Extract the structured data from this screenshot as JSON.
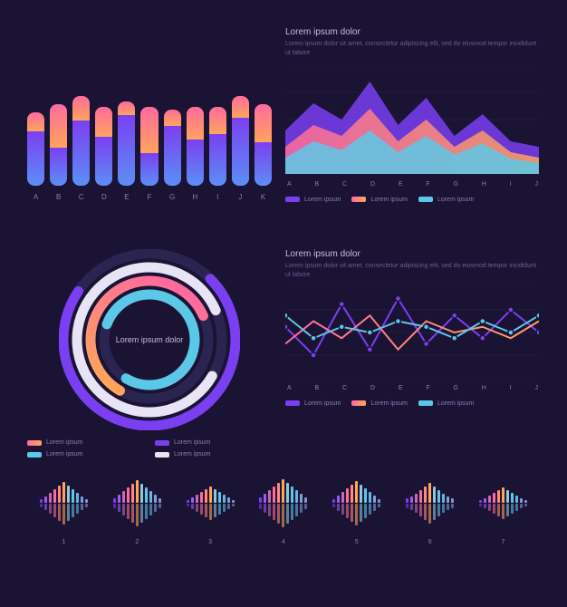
{
  "colors": {
    "bg": "#1a1333",
    "purple": "#7b3ff2",
    "purple2": "#9d5cf5",
    "pink": "#ff6b9d",
    "orange": "#ffa45c",
    "cyan": "#5cc8e8",
    "teal": "#4db5d1",
    "white": "#e8e4f5",
    "text": "#8a7fb5"
  },
  "bar_chart": {
    "type": "bar",
    "categories": [
      "A",
      "B",
      "C",
      "D",
      "E",
      "F",
      "G",
      "H",
      "I",
      "J",
      "K"
    ],
    "top_heights": [
      35,
      80,
      45,
      55,
      25,
      85,
      30,
      60,
      50,
      40,
      70
    ],
    "bot_heights": [
      100,
      70,
      120,
      90,
      130,
      60,
      110,
      85,
      95,
      125,
      80
    ],
    "top_gradient": [
      "#ff6b9d",
      "#ffa45c"
    ],
    "bot_gradient": [
      "#7b3ff2",
      "#5c8ff5"
    ]
  },
  "area_chart": {
    "type": "area",
    "title": "Lorem ipsum dolor",
    "subtitle": "Lorem ipsum dolor sit amet, consectetur adipiscing elit, sed do eiusmod tempor incididunt ut labore",
    "categories": [
      "A",
      "B",
      "C",
      "D",
      "E",
      "F",
      "G",
      "H",
      "I",
      "J"
    ],
    "series": [
      {
        "name": "Lorem ipsum",
        "color": "#7b3ff2",
        "points": [
          40,
          65,
          50,
          85,
          45,
          70,
          35,
          55,
          30,
          25
        ]
      },
      {
        "name": "Lorem ipsum",
        "gradient": [
          "#ff6b9d",
          "#ffa45c"
        ],
        "points": [
          25,
          45,
          35,
          60,
          30,
          50,
          25,
          40,
          20,
          15
        ]
      },
      {
        "name": "Lorem ipsum",
        "color": "#5cc8e8",
        "points": [
          15,
          30,
          22,
          40,
          20,
          35,
          18,
          28,
          14,
          10
        ]
      }
    ]
  },
  "ring_chart": {
    "type": "radial",
    "center_label": "Lorem ipsum dolor",
    "rings": [
      {
        "radius": 95,
        "pct": 72,
        "color": "#7b3ff2",
        "rotate": -45
      },
      {
        "radius": 80,
        "pct": 85,
        "color": "#e8e4f5",
        "rotate": 30
      },
      {
        "radius": 65,
        "pct": 60,
        "gradient": [
          "#ff6b9d",
          "#ffa45c"
        ],
        "rotate": 120
      },
      {
        "radius": 50,
        "pct": 78,
        "color": "#5cc8e8",
        "rotate": 200
      }
    ],
    "legend": [
      {
        "label": "Lorem ipsum",
        "gradient": [
          "#ff6b9d",
          "#ffa45c"
        ]
      },
      {
        "label": "Lorem ipsum",
        "color": "#7b3ff2"
      },
      {
        "label": "Lorem ipsum",
        "color": "#5cc8e8"
      },
      {
        "label": "Lorem ipsum",
        "color": "#e8e4f5"
      }
    ]
  },
  "line_chart": {
    "type": "line",
    "title": "Lorem ipsum dolor",
    "subtitle": "Lorem ipsum dolor sit amet, consectetur adipiscing elit, sed do eiusmod tempor incididunt ut labore",
    "categories": [
      "A",
      "B",
      "C",
      "D",
      "E",
      "F",
      "G",
      "H",
      "I",
      "J"
    ],
    "series": [
      {
        "name": "Lorem ipsum",
        "color": "#7b3ff2",
        "points": [
          45,
          20,
          65,
          25,
          70,
          30,
          55,
          35,
          60,
          40
        ],
        "markers": true
      },
      {
        "name": "Lorem ipsum",
        "gradient": [
          "#ff6b9d",
          "#ffa45c"
        ],
        "points": [
          30,
          50,
          35,
          55,
          25,
          50,
          40,
          45,
          35,
          50
        ]
      },
      {
        "name": "Lorem ipsum",
        "color": "#5cc8e8",
        "points": [
          55,
          35,
          45,
          40,
          50,
          45,
          35,
          50,
          40,
          55
        ],
        "markers": true
      }
    ]
  },
  "waveform": {
    "type": "waveform",
    "labels": [
      "1",
      "2",
      "3",
      "4",
      "5",
      "6",
      "7"
    ],
    "groups": 7,
    "bars_per_group": 11,
    "heights": [
      [
        8,
        14,
        22,
        30,
        38,
        46,
        38,
        30,
        22,
        14,
        8
      ],
      [
        10,
        18,
        26,
        34,
        42,
        50,
        42,
        34,
        26,
        18,
        10
      ],
      [
        6,
        12,
        18,
        24,
        30,
        36,
        30,
        24,
        18,
        12,
        6
      ],
      [
        12,
        20,
        28,
        36,
        44,
        52,
        44,
        36,
        28,
        20,
        12
      ],
      [
        8,
        16,
        24,
        32,
        40,
        48,
        40,
        32,
        24,
        16,
        8
      ],
      [
        10,
        14,
        20,
        28,
        36,
        44,
        36,
        28,
        20,
        14,
        10
      ],
      [
        6,
        10,
        16,
        22,
        28,
        34,
        28,
        22,
        16,
        10,
        6
      ]
    ],
    "colors": [
      "#7b3ff2",
      "#9d5cf5",
      "#c56bb5",
      "#ff6b9d",
      "#ff8a7d",
      "#ffa45c",
      "#8cc8d8",
      "#5cc8e8",
      "#6ab5e0",
      "#7ba2d8",
      "#8a90d0"
    ]
  }
}
